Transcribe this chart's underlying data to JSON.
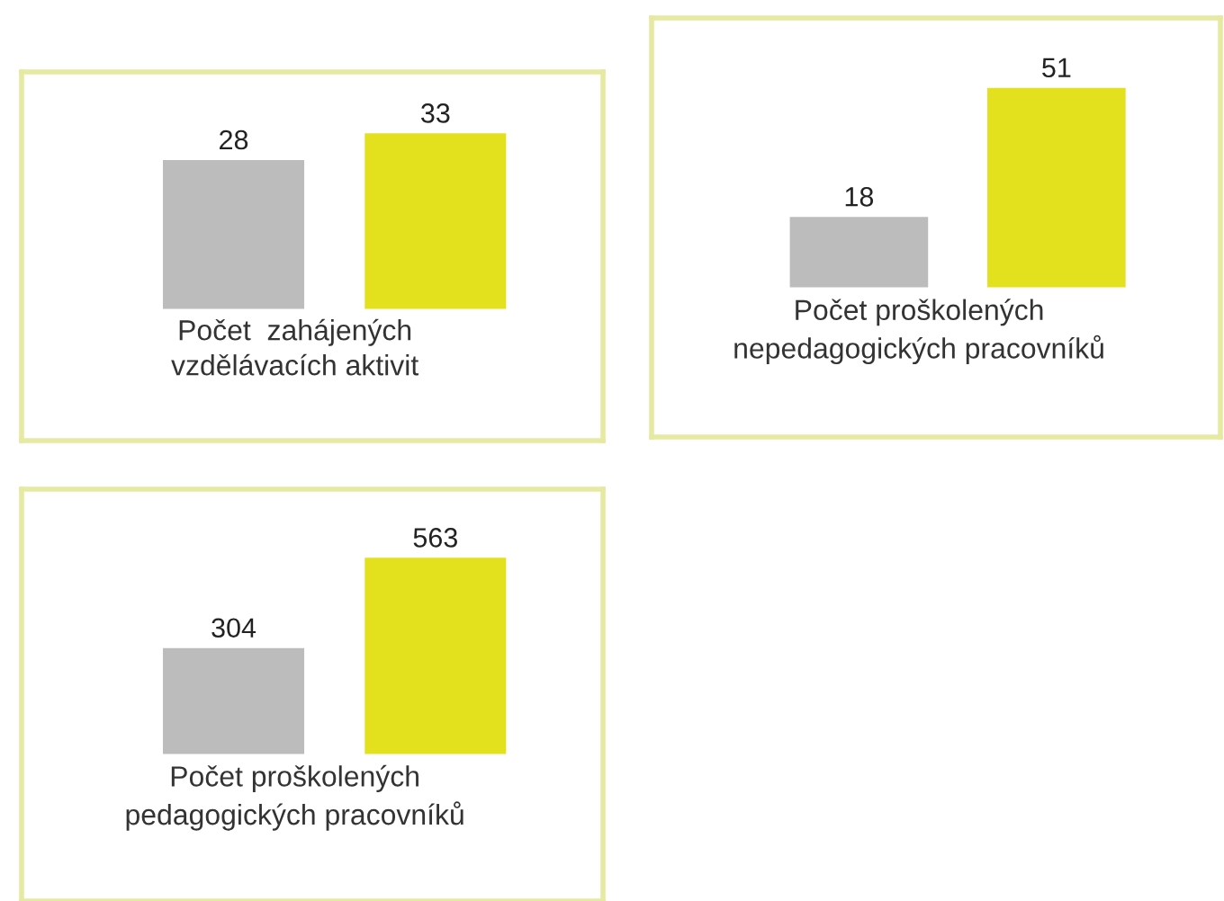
{
  "chart_data": [
    {
      "type": "bar",
      "xlabel": "Počet  zahájených\nvzdělávacích aktivit",
      "categories": [
        null,
        null
      ],
      "values": [
        28,
        33
      ],
      "colors": [
        "#bcbcbc",
        "#e3e01e"
      ],
      "data_labels": true
    },
    {
      "type": "bar",
      "xlabel": "Počet proškolených\nnepedagogických pracovníků",
      "categories": [
        null,
        null
      ],
      "values": [
        18,
        51
      ],
      "colors": [
        "#bcbcbc",
        "#e3e01e"
      ],
      "data_labels": true
    },
    {
      "type": "bar",
      "xlabel": "Počet proškolených\npedagogických pracovníků",
      "categories": [
        null,
        null
      ],
      "values": [
        304,
        563
      ],
      "colors": [
        "#bcbcbc",
        "#e3e01e"
      ],
      "data_labels": true
    }
  ]
}
